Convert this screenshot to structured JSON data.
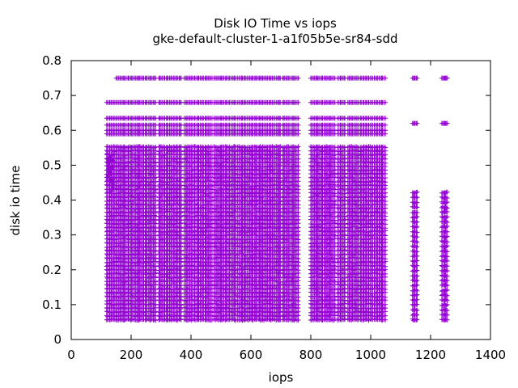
{
  "chart_data": {
    "type": "scatter",
    "title": "Disk IO Time vs iops",
    "subtitle": "gke-default-cluster-1-a1f05b5e-sr84-sdd",
    "xlabel": "iops",
    "ylabel": "disk io time",
    "xlim": [
      0,
      1400
    ],
    "ylim": [
      0,
      0.8
    ],
    "xticks": [
      "0",
      "200",
      "400",
      "600",
      "800",
      "1000",
      "1200",
      "1400"
    ],
    "yticks": [
      "0",
      "0.1",
      "0.2",
      "0.3",
      "0.4",
      "0.5",
      "0.6",
      "0.7",
      "0.8"
    ],
    "grid": false,
    "legend": false,
    "marker": "+",
    "color": "#9400d3",
    "x_clusters": [
      [
        118,
        285
      ],
      [
        292,
        370
      ],
      [
        378,
        470
      ],
      [
        478,
        555
      ],
      [
        560,
        600
      ],
      [
        604,
        700
      ],
      [
        706,
        758
      ],
      [
        800,
        882
      ],
      [
        890,
        915
      ],
      [
        924,
        960
      ],
      [
        966,
        1008
      ],
      [
        1012,
        1048
      ],
      [
        1140,
        1156
      ],
      [
        1238,
        1256
      ]
    ],
    "bands": [
      0.68,
      0.635,
      0.615,
      0.6,
      0.59
    ]
  }
}
